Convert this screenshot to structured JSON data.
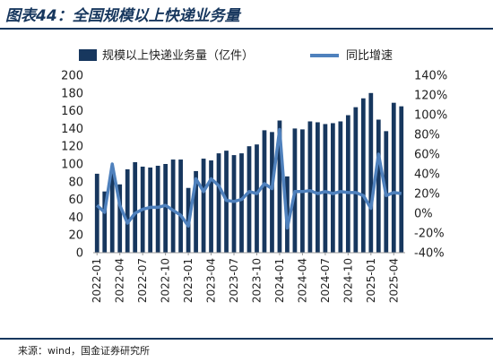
{
  "header": {
    "title": "图表44：全国规模以上快递业务量"
  },
  "footer": {
    "source": "来源：wind，国金证券研究所"
  },
  "colors": {
    "bars": "#17375e",
    "line": "#4f81bd",
    "rule": "#17375e"
  },
  "chart_data": {
    "type": "bar+line",
    "legend": {
      "position": "top",
      "bar_label": "规模以上快递业务量（亿件）",
      "line_label": "同比增速"
    },
    "y_left": {
      "ticks": [
        0,
        20,
        40,
        60,
        80,
        100,
        120,
        140,
        160,
        180,
        200
      ],
      "range": [
        0,
        200
      ]
    },
    "y_right": {
      "ticks": [
        "-40%",
        "-20%",
        "0%",
        "20%",
        "40%",
        "60%",
        "80%",
        "100%",
        "120%",
        "140%"
      ],
      "range": [
        -40,
        140
      ]
    },
    "x_tick_labels": [
      "2022-01",
      "2022-04",
      "2022-07",
      "2022-10",
      "2023-01",
      "2023-04",
      "2023-07",
      "2023-10",
      "2024-01",
      "2024-04",
      "2024-07",
      "2024-10",
      "2025-01",
      "2025-04"
    ],
    "categories": [
      "2022-01",
      "2022-02",
      "2022-03",
      "2022-04",
      "2022-05",
      "2022-06",
      "2022-07",
      "2022-08",
      "2022-09",
      "2022-10",
      "2022-11",
      "2022-12",
      "2023-01",
      "2023-02",
      "2023-03",
      "2023-04",
      "2023-05",
      "2023-06",
      "2023-07",
      "2023-08",
      "2023-09",
      "2023-10",
      "2023-11",
      "2023-12",
      "2024-01",
      "2024-02",
      "2024-03",
      "2024-04",
      "2024-05",
      "2024-06",
      "2024-07",
      "2024-08",
      "2024-09",
      "2024-10",
      "2024-11",
      "2024-12",
      "2025-01",
      "2025-02",
      "2025-03",
      "2025-04",
      "2025-05"
    ],
    "series": [
      {
        "name": "规模以上快递业务量（亿件）",
        "type": "bar",
        "axis": "left",
        "values": [
          89,
          69,
          93,
          77,
          94,
          102,
          97,
          96,
          98,
          100,
          105,
          105,
          73,
          92,
          106,
          104,
          112,
          115,
          110,
          112,
          120,
          122,
          138,
          136,
          149,
          86,
          140,
          139,
          148,
          147,
          145,
          146,
          148,
          155,
          164,
          174,
          180,
          150,
          137,
          169,
          165
        ]
      },
      {
        "name": "同比增速",
        "type": "line",
        "axis": "right",
        "values": [
          8,
          1,
          50,
          8,
          -10,
          0,
          4,
          6,
          6,
          8,
          3,
          -2,
          -13,
          35,
          22,
          35,
          28,
          13,
          12,
          14,
          22,
          20,
          30,
          25,
          85,
          -15,
          22,
          22,
          23,
          20,
          22,
          20,
          22,
          21,
          21,
          18,
          5,
          60,
          18,
          21,
          20
        ]
      }
    ]
  }
}
